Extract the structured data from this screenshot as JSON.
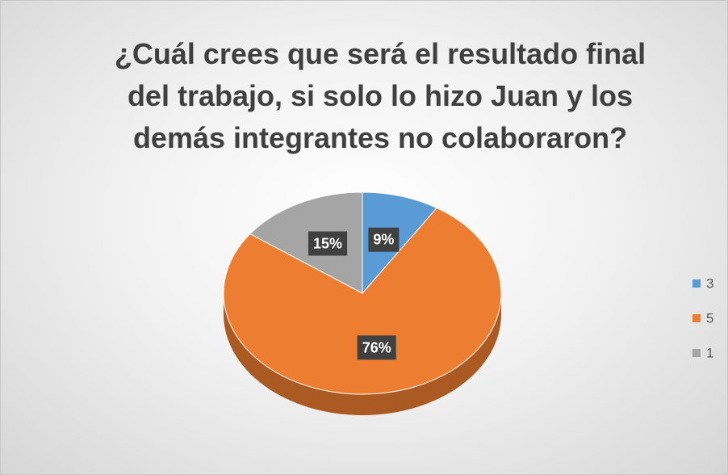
{
  "chart_data": {
    "type": "pie",
    "title": "¿Cuál crees que será el resultado final del trabajo, si solo lo hizo Juan y los demás integrantes no colaboraron?",
    "categories": [
      "3",
      "5",
      "1"
    ],
    "values": [
      9,
      76,
      15
    ],
    "value_labels": [
      "9%",
      "76%",
      "15%"
    ],
    "colors": [
      "#5b9bd5",
      "#ed7d31",
      "#a5a5a5"
    ],
    "legend": "right"
  }
}
